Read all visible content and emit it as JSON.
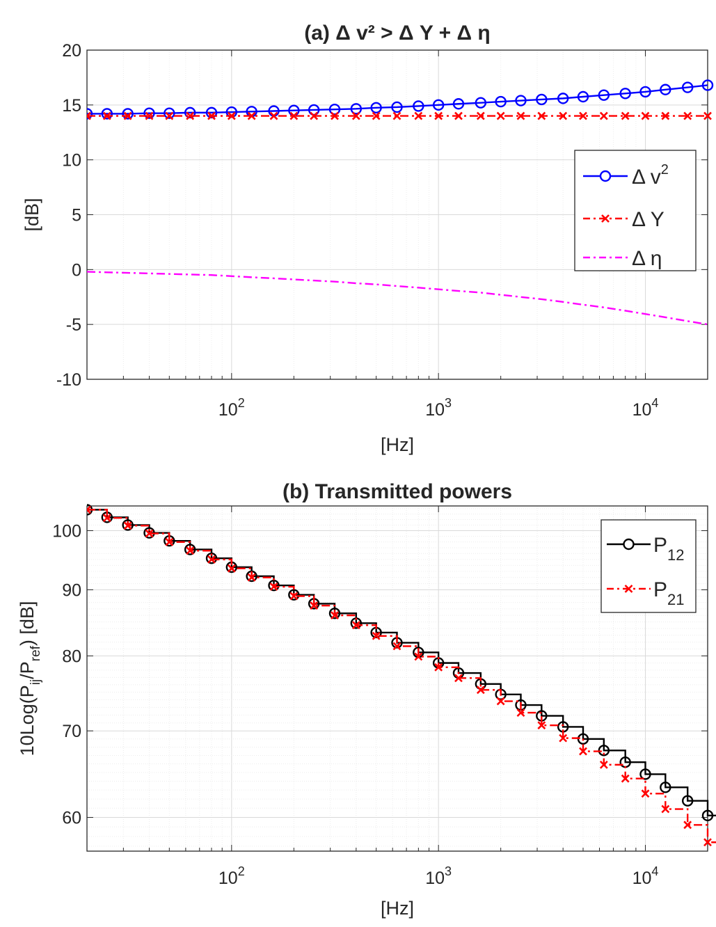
{
  "chart_data": [
    {
      "type": "line",
      "title": "(a) Δ v² > Δ Y + Δ η",
      "xlabel": "[Hz]",
      "ylabel": "[dB]",
      "xscale": "log",
      "xlim": [
        20,
        20000
      ],
      "ylim": [
        -10,
        20
      ],
      "yticks": [
        -10,
        -5,
        0,
        5,
        10,
        15,
        20
      ],
      "ytick_labels": [
        "-10",
        "-5",
        "0",
        "5",
        "10",
        "15",
        "20"
      ],
      "xticks": [
        100,
        1000,
        10000
      ],
      "xtick_labels": [
        {
          "base": "10",
          "exp": "2"
        },
        {
          "base": "10",
          "exp": "3"
        },
        {
          "base": "10",
          "exp": "4"
        }
      ],
      "grid": true,
      "legend": "right",
      "x": [
        20,
        25,
        31.5,
        40,
        50,
        63,
        80,
        100,
        125,
        160,
        200,
        250,
        315,
        400,
        500,
        630,
        800,
        1000,
        1250,
        1600,
        2000,
        2500,
        3150,
        4000,
        5000,
        6300,
        8000,
        10000,
        12500,
        16000,
        20000
      ],
      "series": [
        {
          "name": "Δ v²",
          "legend_base": "Δ v",
          "legend_sup": "2",
          "color": "#0000ff",
          "style": "solid",
          "marker": "circle",
          "values": [
            14.2,
            14.2,
            14.2,
            14.25,
            14.25,
            14.3,
            14.3,
            14.35,
            14.4,
            14.45,
            14.5,
            14.55,
            14.6,
            14.65,
            14.75,
            14.8,
            14.9,
            15.0,
            15.1,
            15.2,
            15.3,
            15.4,
            15.5,
            15.6,
            15.75,
            15.9,
            16.05,
            16.2,
            16.4,
            16.6,
            16.8
          ]
        },
        {
          "name": "Δ Y",
          "legend_base": "Δ Y",
          "legend_sup": "",
          "color": "#ff0000",
          "style": "dashdot",
          "marker": "x",
          "values": [
            14.0,
            14.0,
            14.0,
            14.0,
            14.0,
            14.0,
            14.0,
            14.0,
            14.0,
            14.0,
            14.0,
            14.0,
            14.0,
            14.0,
            14.0,
            14.0,
            14.0,
            14.0,
            14.0,
            14.0,
            14.0,
            14.0,
            14.0,
            14.0,
            14.0,
            14.0,
            14.0,
            14.0,
            14.0,
            14.0,
            14.0
          ]
        },
        {
          "name": "Δ η",
          "legend_base": "Δ η",
          "legend_sup": "",
          "color": "#ff00ff",
          "style": "dashdot",
          "marker": "none",
          "values": [
            -0.2,
            -0.25,
            -0.3,
            -0.35,
            -0.4,
            -0.45,
            -0.5,
            -0.6,
            -0.7,
            -0.8,
            -0.9,
            -1.0,
            -1.1,
            -1.25,
            -1.35,
            -1.5,
            -1.65,
            -1.8,
            -1.95,
            -2.1,
            -2.3,
            -2.5,
            -2.7,
            -2.95,
            -3.2,
            -3.45,
            -3.75,
            -4.05,
            -4.35,
            -4.7,
            -5.0
          ]
        }
      ]
    },
    {
      "type": "line",
      "title": "(b) Transmitted powers",
      "xlabel": "[Hz]",
      "ylabel": "10Log(P_ij/P_ref) [dB]",
      "ylabel_parts": [
        "10Log(P",
        "ij",
        "/P",
        "ref",
        ") [dB]"
      ],
      "xscale": "log",
      "yscale": "log",
      "xlim": [
        20,
        20000
      ],
      "ylim": [
        56.5,
        104.5
      ],
      "yticks": [
        60,
        70,
        80,
        90,
        100
      ],
      "ytick_labels": [
        "60",
        "70",
        "80",
        "90",
        "100"
      ],
      "xticks": [
        100,
        1000,
        10000
      ],
      "xtick_labels": [
        {
          "base": "10",
          "exp": "2"
        },
        {
          "base": "10",
          "exp": "3"
        },
        {
          "base": "10",
          "exp": "4"
        }
      ],
      "grid": true,
      "legend": "top-right",
      "x": [
        20,
        25,
        31.5,
        40,
        50,
        63,
        80,
        100,
        125,
        160,
        200,
        250,
        315,
        400,
        500,
        630,
        800,
        1000,
        1250,
        1600,
        2000,
        2500,
        3150,
        4000,
        5000,
        6300,
        8000,
        10000,
        12500,
        16000,
        20000
      ],
      "series": [
        {
          "name": "P12",
          "legend_base": "P",
          "legend_sub": "12",
          "color": "#000000",
          "style": "solid-step",
          "marker": "circle",
          "values": [
            103.8,
            102.4,
            101.0,
            99.6,
            98.2,
            96.7,
            95.2,
            93.7,
            92.2,
            90.7,
            89.2,
            87.8,
            86.3,
            84.8,
            83.4,
            81.9,
            80.5,
            79.0,
            77.6,
            76.1,
            74.7,
            73.3,
            71.9,
            70.5,
            69.0,
            67.6,
            66.2,
            64.8,
            63.3,
            61.8,
            60.2
          ]
        },
        {
          "name": "P21",
          "legend_base": "P",
          "legend_sub": "21",
          "color": "#ff0000",
          "style": "dashdot-step",
          "marker": "x",
          "values": [
            103.8,
            102.3,
            100.9,
            99.5,
            98.0,
            96.5,
            95.0,
            93.5,
            92.0,
            90.5,
            89.0,
            87.5,
            86.0,
            84.5,
            82.9,
            81.4,
            79.9,
            78.4,
            76.9,
            75.3,
            73.8,
            72.3,
            70.7,
            69.1,
            67.5,
            65.9,
            64.3,
            62.6,
            60.9,
            59.2,
            57.4
          ]
        }
      ]
    }
  ]
}
